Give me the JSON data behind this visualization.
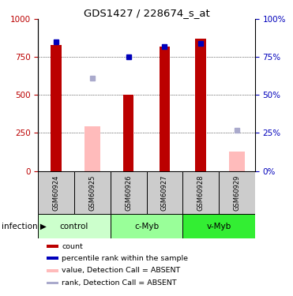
{
  "title": "GDS1427 / 228674_s_at",
  "samples": [
    "GSM60924",
    "GSM60925",
    "GSM60926",
    "GSM60927",
    "GSM60928",
    "GSM60929"
  ],
  "groups": [
    {
      "label": "control",
      "color": "#ccffcc",
      "span": [
        0,
        2
      ]
    },
    {
      "label": "c-Myb",
      "color": "#99ff99",
      "span": [
        2,
        4
      ]
    },
    {
      "label": "v-Myb",
      "color": "#33ee33",
      "span": [
        4,
        6
      ]
    }
  ],
  "group_label": "infection",
  "red_bars": [
    830,
    0,
    500,
    820,
    870,
    0
  ],
  "pink_bars": [
    0,
    295,
    0,
    0,
    0,
    130
  ],
  "blue_dots": [
    85,
    0,
    75,
    82,
    84,
    0
  ],
  "lilac_dots": [
    0,
    61,
    0,
    0,
    0,
    27
  ],
  "ylim_left": [
    0,
    1000
  ],
  "ylim_right": [
    0,
    100
  ],
  "yticks_left": [
    0,
    250,
    500,
    750,
    1000
  ],
  "yticks_right": [
    0,
    25,
    50,
    75,
    100
  ],
  "red_color": "#bb0000",
  "pink_color": "#ffbbbb",
  "blue_color": "#0000bb",
  "lilac_color": "#aaaacc",
  "label_gray": "#cccccc",
  "legend_items": [
    {
      "color": "#bb0000",
      "label": "count"
    },
    {
      "color": "#0000bb",
      "label": "percentile rank within the sample"
    },
    {
      "color": "#ffbbbb",
      "label": "value, Detection Call = ABSENT"
    },
    {
      "color": "#aaaacc",
      "label": "rank, Detection Call = ABSENT"
    }
  ]
}
